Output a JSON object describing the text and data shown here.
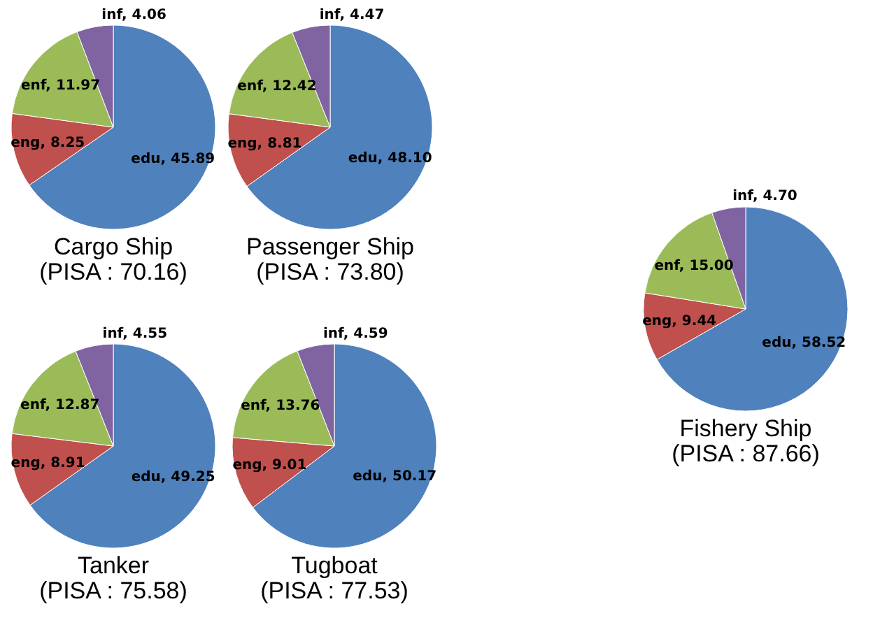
{
  "chart_data": [
    {
      "type": "pie",
      "title": "Cargo Ship",
      "subtitle": "(PISA : 70.16)",
      "categories": [
        "edu",
        "eng",
        "enf",
        "inf"
      ],
      "values": [
        45.89,
        8.25,
        11.97,
        4.06
      ],
      "value_labels": [
        "45.89",
        "8.25",
        "11.97",
        "4.06"
      ],
      "colors": [
        "#4f81bd",
        "#c0504d",
        "#9bbb59",
        "#8064a2"
      ]
    },
    {
      "type": "pie",
      "title": "Passenger Ship",
      "subtitle": "(PISA : 73.80)",
      "categories": [
        "edu",
        "eng",
        "enf",
        "inf"
      ],
      "values": [
        48.1,
        8.81,
        12.42,
        4.47
      ],
      "value_labels": [
        "48.10",
        "8.81",
        "12.42",
        "4.47"
      ],
      "colors": [
        "#4f81bd",
        "#c0504d",
        "#9bbb59",
        "#8064a2"
      ]
    },
    {
      "type": "pie",
      "title": "Tanker",
      "subtitle": "(PISA : 75.58)",
      "categories": [
        "edu",
        "eng",
        "enf",
        "inf"
      ],
      "values": [
        49.25,
        8.91,
        12.87,
        4.55
      ],
      "value_labels": [
        "49.25",
        "8.91",
        "12.87",
        "4.55"
      ],
      "colors": [
        "#4f81bd",
        "#c0504d",
        "#9bbb59",
        "#8064a2"
      ]
    },
    {
      "type": "pie",
      "title": "Tugboat",
      "subtitle": "(PISA : 77.53)",
      "categories": [
        "edu",
        "eng",
        "enf",
        "inf"
      ],
      "values": [
        50.17,
        9.01,
        13.76,
        4.59
      ],
      "value_labels": [
        "50.17",
        "9.01",
        "13.76",
        "4.59"
      ],
      "colors": [
        "#4f81bd",
        "#c0504d",
        "#9bbb59",
        "#8064a2"
      ]
    },
    {
      "type": "pie",
      "title": "Fishery Ship",
      "subtitle": "(PISA : 87.66)",
      "categories": [
        "edu",
        "eng",
        "enf",
        "inf"
      ],
      "values": [
        58.52,
        9.44,
        15.0,
        4.7
      ],
      "value_labels": [
        "58.52",
        "9.44",
        "15.00",
        "4.70"
      ],
      "colors": [
        "#4f81bd",
        "#c0504d",
        "#9bbb59",
        "#8064a2"
      ]
    }
  ]
}
